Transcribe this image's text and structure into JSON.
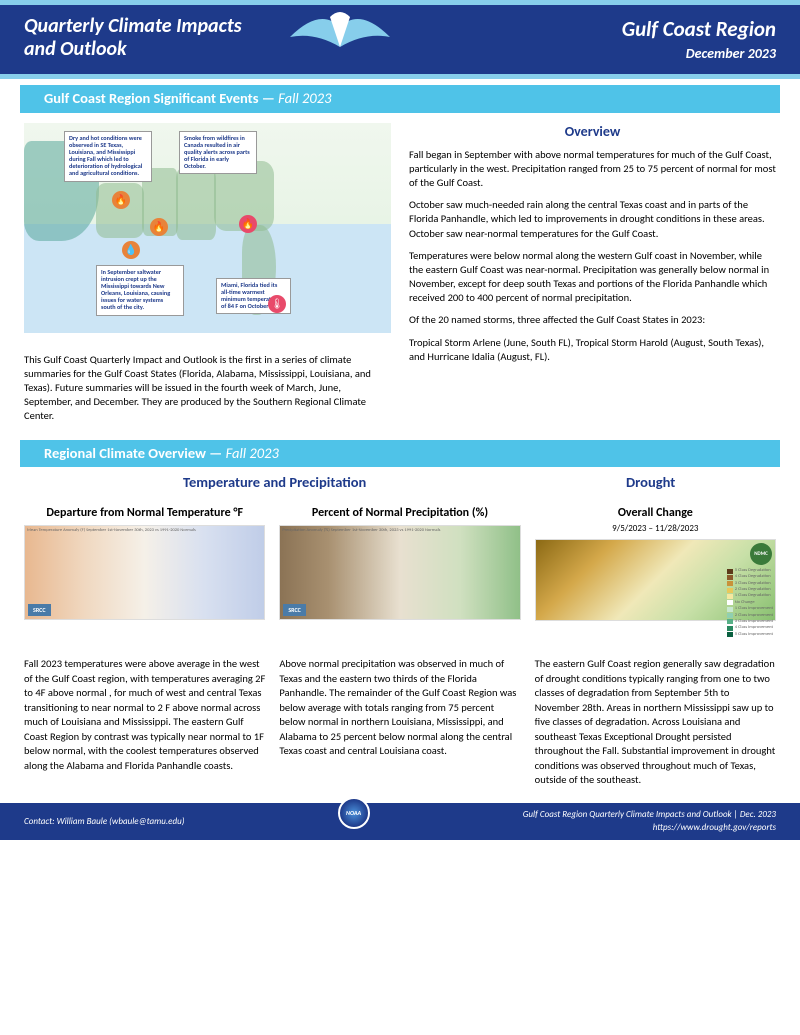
{
  "header": {
    "title_l1": "Quarterly Climate Impacts",
    "title_l2": "and Outlook",
    "region": "Gulf Coast Region",
    "date": "December 2023"
  },
  "section1": {
    "title": "Gulf Coast Region Significant Events —",
    "em": "Fall 2023"
  },
  "callouts": {
    "c1": "Dry and hot conditions were observed in SE Texas, Louisiana, and Mississippi during Fall which led to deterioration of hydrological and agricultural conditions.",
    "c2": "Smoke from wildfires in Canada resulted in air quality alerts across parts of Florida in early October.",
    "c3": "In September saltwater intrusion crept up the Mississippi towards New Orleans, Louisiana, causing issues for water systems south of the city.",
    "c4": "Miami, Florida tied its all-time warmest minimum temperature of 84 F on October 12th."
  },
  "intro": "This Gulf Coast Quarterly Impact and Outlook is the first in a series of climate summaries for the Gulf Coast States (Florida, Alabama, Mississippi, Louisiana, and Texas). Future summaries will be issued in the fourth week of March, June, September, and December. They are produced by the Southern Regional Climate Center.",
  "overview": {
    "title": "Overview",
    "p1": "Fall began in September with above normal temperatures for much of the Gulf Coast, particularly in the west. Precipitation ranged from 25 to 75 percent of normal for most of the Gulf Coast.",
    "p2": "October saw much-needed rain along the central Texas coast and in parts of the Florida Panhandle, which led to improvements in drought conditions in these areas. October saw near-normal temperatures for the Gulf Coast.",
    "p3": "Temperatures were below normal along the western Gulf coast in November, while the eastern Gulf Coast was near-normal. Precipitation was generally below normal in November, except for deep south Texas and portions of the Florida Panhandle which received 200 to 400 percent of normal precipitation.",
    "p4": "Of the 20 named storms, three affected the Gulf Coast States in 2023:",
    "p5": "Tropical Storm Arlene (June, South FL), Tropical Storm Harold (August, South Texas), and Hurricane Idalia (August, FL)."
  },
  "section2": {
    "title": "Regional Climate Overview —",
    "em": "Fall 2023"
  },
  "tp": {
    "header": "Temperature and Precipitation",
    "drought": "Drought",
    "temp_title": "Departure from Normal Temperature °F",
    "precip_title": "Percent of Normal Precipitation (%)",
    "drought_title": "Overall Change",
    "drought_dates": "9/5/2023 – 11/28/2023",
    "temp_caption": "Mean Temperature Anomaly (F) September 1st-November 30th, 2023 vs 1991-2020 Normals",
    "precip_caption": "Precipitation Anomaly (%) September 1st-November 30th, 2023 vs 1991-2020 Normals",
    "srcc": "SRCC",
    "ndmc": "NDMC"
  },
  "body": {
    "temp": "Fall 2023 temperatures were above average in the west of the Gulf Coast region, with temperatures averaging 2F to 4F above normal , for much of west and central Texas transitioning to near normal  to 2 F above normal across much of Louisiana and Mississippi. The eastern Gulf Coast Region by contrast was typically near normal to 1F below normal, with the coolest temperatures observed along the Alabama and Florida Panhandle coasts.",
    "precip": "Above normal precipitation was observed in much of Texas and the eastern two thirds of the Florida Panhandle. The remainder of the Gulf Coast Region was below average with totals ranging from 75 percent below normal in northern Louisiana, Mississippi, and Alabama to 25 percent below normal along the central Texas coast and central Louisiana coast.",
    "drought": "The eastern Gulf Coast region generally saw degradation of drought conditions typically ranging from one to two classes of degradation from September 5th to November 28th. Areas in northern Mississippi saw up to five classes of degradation. Across Louisiana and southeast Texas Exceptional Drought persisted throughout the Fall.  Substantial improvement in drought conditions was observed throughout much of Texas, outside of the southeast."
  },
  "legend": {
    "items": [
      "5 Class Degradation",
      "4 Class Degradation",
      "3 Class Degradation",
      "2 Class Degradation",
      "1 Class Degradation",
      "No Change",
      "1 Class Improvement",
      "2 Class Improvement",
      "3 Class Improvement",
      "4 Class Improvement",
      "5 Class Improvement"
    ],
    "colors": [
      "#5c3a1a",
      "#8b5a2b",
      "#c8923a",
      "#e8c85a",
      "#f5e8a0",
      "#ffffff",
      "#c8e8d0",
      "#90d0b0",
      "#58b088",
      "#2a8860",
      "#0a6040"
    ]
  },
  "footer": {
    "contact": "Contact:  William Baule (wbaule@tamu.edu)",
    "right1": "Gulf Coast Region Quarterly Climate Impacts and Outlook | Dec. 2023",
    "right2": "https://www.drought.gov/reports",
    "noaa": "NOAA"
  }
}
